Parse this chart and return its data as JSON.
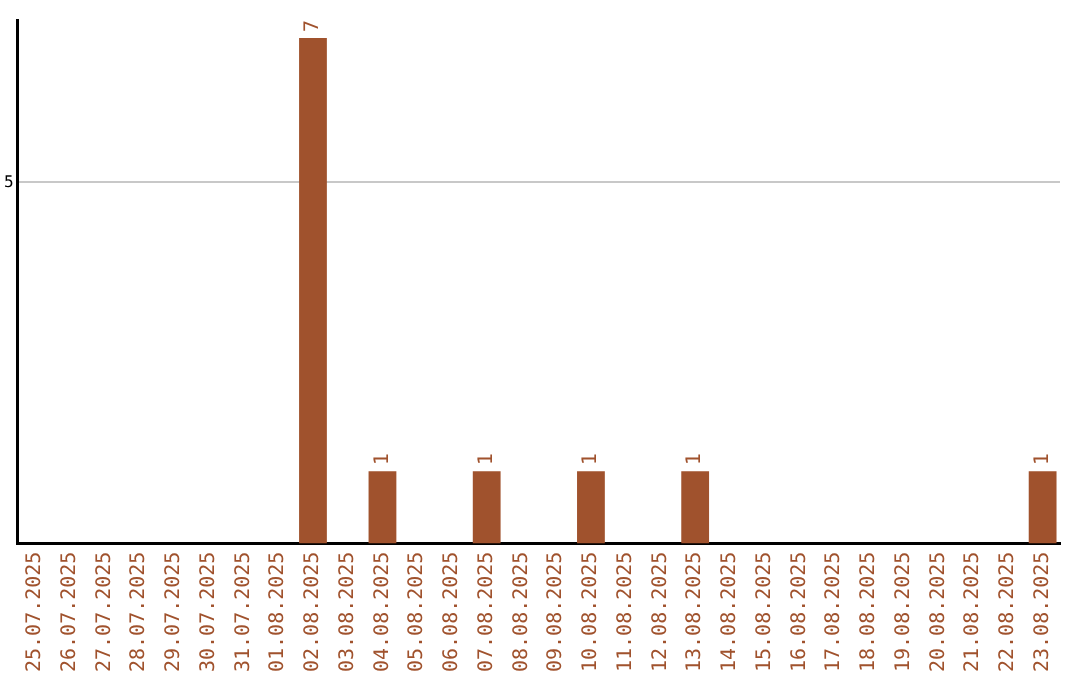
{
  "chart_data": {
    "type": "bar",
    "categories": [
      "25.07.2025",
      "26.07.2025",
      "27.07.2025",
      "28.07.2025",
      "29.07.2025",
      "30.07.2025",
      "31.07.2025",
      "01.08.2025",
      "02.08.2025",
      "03.08.2025",
      "04.08.2025",
      "05.08.2025",
      "06.08.2025",
      "07.08.2025",
      "08.08.2025",
      "09.08.2025",
      "10.08.2025",
      "11.08.2025",
      "12.08.2025",
      "13.08.2025",
      "14.08.2025",
      "15.08.2025",
      "16.08.2025",
      "17.08.2025",
      "18.08.2025",
      "19.08.2025",
      "20.08.2025",
      "21.08.2025",
      "22.08.2025",
      "23.08.2025"
    ],
    "values": [
      0,
      0,
      0,
      0,
      0,
      0,
      0,
      0,
      7,
      0,
      1,
      0,
      0,
      1,
      0,
      0,
      1,
      0,
      0,
      1,
      0,
      0,
      0,
      0,
      0,
      0,
      0,
      0,
      0,
      1
    ],
    "value_labels": [
      null,
      null,
      null,
      null,
      null,
      null,
      null,
      null,
      "7",
      null,
      "1",
      null,
      null,
      "1",
      null,
      null,
      "1",
      null,
      null,
      "1",
      null,
      null,
      null,
      null,
      null,
      null,
      null,
      null,
      null,
      "1"
    ],
    "color": "#a0522d",
    "ylim": [
      0,
      7.25
    ],
    "yticks": [
      5
    ],
    "grid": "y",
    "legend": false
  }
}
